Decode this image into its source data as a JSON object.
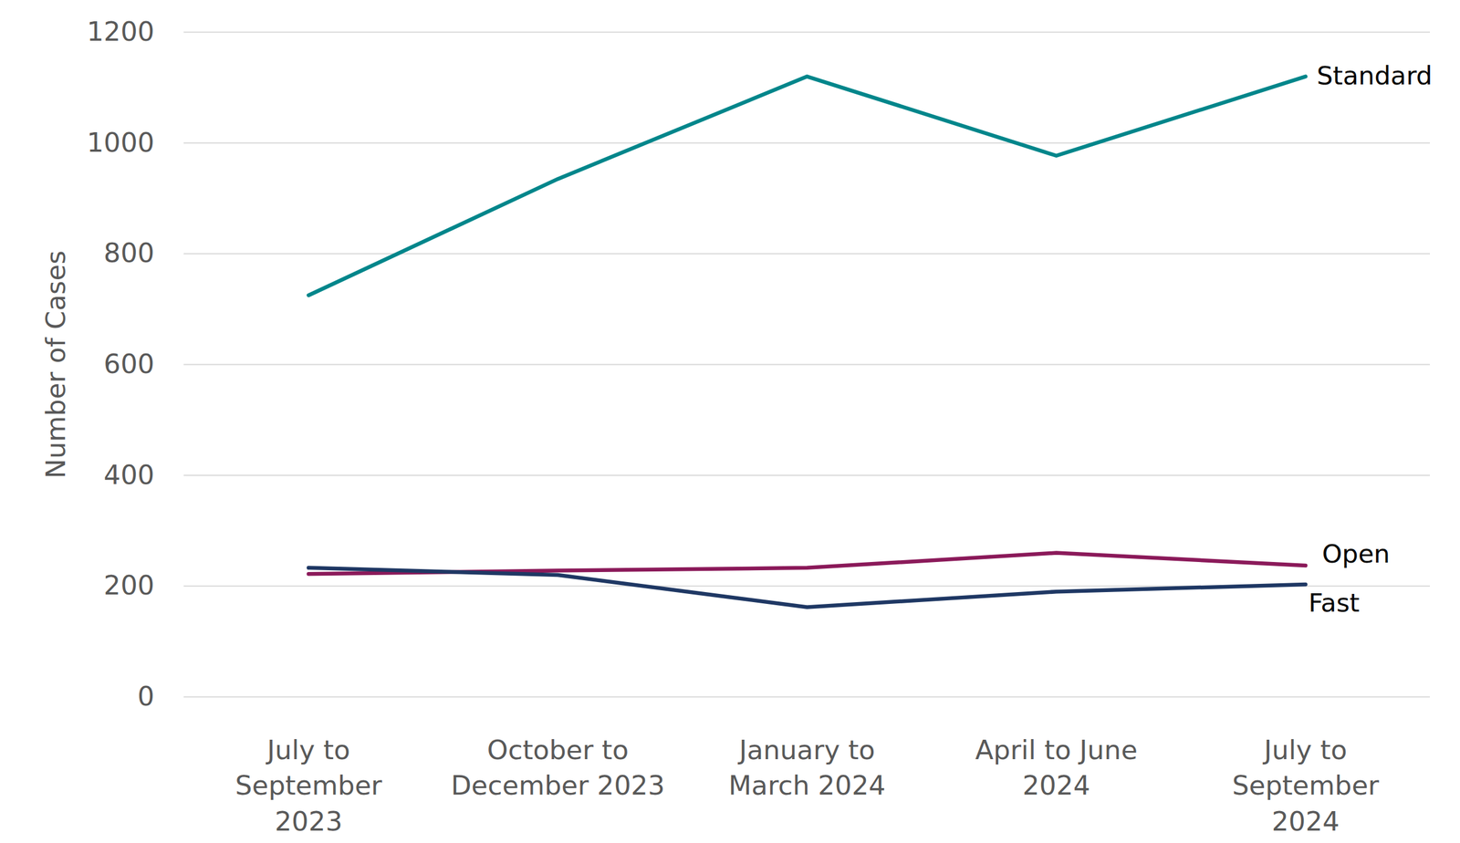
{
  "chart_data": {
    "type": "line",
    "y_label": "Number of Cases",
    "categories": [
      "July to\nSeptember\n2023",
      "October to\nDecember 2023",
      "January to\nMarch 2024",
      "April to June\n2024",
      "July to\nSeptember\n2024"
    ],
    "series": [
      {
        "name": "Standard",
        "color": "#00868b",
        "values": [
          725,
          935,
          1120,
          977,
          1120
        ]
      },
      {
        "name": "Open",
        "color": "#8b1a5a",
        "values": [
          222,
          228,
          233,
          260,
          237
        ]
      },
      {
        "name": "Fast",
        "color": "#1f3864",
        "values": [
          233,
          220,
          162,
          190,
          203
        ]
      }
    ],
    "ylim": [
      0,
      1200
    ],
    "yticks": [
      0,
      200,
      400,
      600,
      800,
      1000,
      1200
    ],
    "grid": true
  }
}
